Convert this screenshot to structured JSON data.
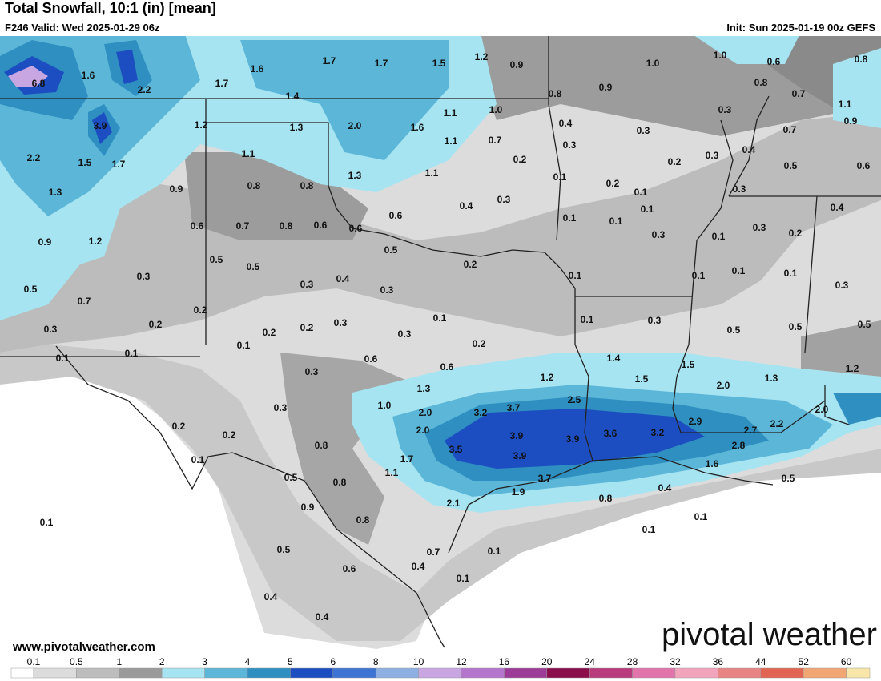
{
  "header": {
    "title": "Total Snowfall, 10:1 (in) [mean]",
    "valid": "F246 Valid: Wed 2025-01-29 06z",
    "init": "Init: Sun 2025-01-19 00z GEFS"
  },
  "map": {
    "labels": [
      "6.8",
      "1.6",
      "2.2",
      "1.7",
      "1.6",
      "1.7",
      "1.7",
      "1.5",
      "1.2",
      "0.9",
      "1.0",
      "1.0",
      "0.6",
      "0.8",
      "1.4",
      "0.8",
      "0.9",
      "0.8",
      "0.7",
      "1.1",
      "3.9",
      "1.2",
      "1.3",
      "2.0",
      "1.6",
      "1.1",
      "1.0",
      "0.4",
      "0.3",
      "0.3",
      "0.7",
      "0.9",
      "2.2",
      "1.5",
      "1.7",
      "1.1",
      "1.1",
      "0.7",
      "0.3",
      "0.3",
      "0.4",
      "0.2",
      "0.2",
      "0.5",
      "0.6",
      "1.3",
      "0.9",
      "0.8",
      "0.8",
      "1.3",
      "1.1",
      "0.1",
      "0.2",
      "0.1",
      "0.3",
      "0.4",
      "0.6",
      "0.4",
      "0.3",
      "0.1",
      "0.1",
      "0.1",
      "0.9",
      "1.2",
      "0.6",
      "0.7",
      "0.8",
      "0.6",
      "0.6",
      "0.3",
      "0.1",
      "0.3",
      "0.2",
      "0.5",
      "0.5",
      "0.5",
      "0.2",
      "0.1",
      "0.1",
      "0.1",
      "0.1",
      "0.5",
      "0.3",
      "0.3",
      "0.4",
      "0.3",
      "0.3",
      "0.7",
      "0.2",
      "0.3",
      "0.2",
      "0.2",
      "0.2",
      "0.3",
      "0.3",
      "0.1",
      "0.2",
      "0.1",
      "0.3",
      "0.5",
      "0.5",
      "0.5",
      "0.1",
      "0.1",
      "0.1",
      "0.6",
      "1.4",
      "1.5",
      "0.3",
      "0.6",
      "1.2",
      "1.5",
      "1.3",
      "1.2",
      "1.3",
      "2.0",
      "1.0",
      "2.5",
      "2.0",
      "0.3",
      "2.0",
      "3.2",
      "3.7",
      "2.9",
      "0.2",
      "2.0",
      "3.9",
      "3.9",
      "3.6",
      "3.2",
      "2.7",
      "2.2",
      "0.2",
      "0.8",
      "3.5",
      "2.8",
      "0.1",
      "1.7",
      "3.9",
      "1.1",
      "0.5",
      "0.8",
      "3.7",
      "1.6",
      "0.5",
      "0.4",
      "1.9",
      "2.1",
      "0.8",
      "0.9",
      "0.1",
      "0.8",
      "0.1",
      "0.1",
      "0.5",
      "0.7",
      "0.1",
      "0.4",
      "0.6",
      "0.1",
      "0.4",
      "0.4"
    ]
  },
  "footer": {
    "website": "www.pivotalweather.com",
    "logo": "pivotal weather"
  },
  "colorbar": {
    "ticks": [
      0.1,
      0.5,
      1,
      2,
      3,
      4,
      5,
      6,
      8,
      10,
      12,
      16,
      20,
      24,
      28,
      32,
      36,
      44,
      52,
      60
    ],
    "colors": [
      "#dcdcdc",
      "#bdbdbd",
      "#9a9a9a",
      "#a6e4f2",
      "#5cb6d8",
      "#2e8fc0",
      "#1c4ec2",
      "#3d73d2",
      "#8cb0e2",
      "#c7a6e2",
      "#b475cc",
      "#9c3c98",
      "#8a0e4c",
      "#b83c7c",
      "#e274ac",
      "#f2a4bc",
      "#e88484",
      "#e26452",
      "#f2a674",
      "#f8e6a8"
    ]
  }
}
